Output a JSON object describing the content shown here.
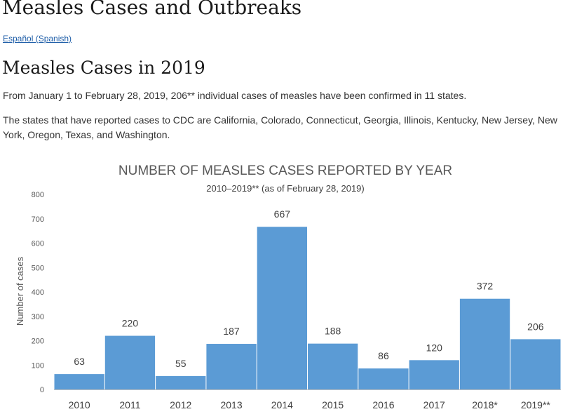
{
  "page": {
    "title": "Measles Cases and Outbreaks",
    "language_link": "Español (Spanish)",
    "section_title": "Measles Cases in 2019",
    "paragraph1": "From January 1 to February 28, 2019, 206** individual cases of measles have been confirmed in 11 states.",
    "paragraph2": "The states that have reported cases to CDC are California, Colorado, Connecticut, Georgia, Illinois, Kentucky, New Jersey, New York, Oregon, Texas, and Washington."
  },
  "colors": {
    "bar": "#5b9bd5",
    "link": "#1f5ea8",
    "axis": "#bfbfbf"
  },
  "chart_data": {
    "type": "bar",
    "title": "NUMBER OF MEASLES CASES REPORTED BY YEAR",
    "subtitle": "2010–2019** (as of February 28, 2019)",
    "xlabel": "",
    "ylabel": "Number of cases",
    "categories": [
      "2010",
      "2011",
      "2012",
      "2013",
      "2014",
      "2015",
      "2016",
      "2017",
      "2018*",
      "2019**"
    ],
    "values": [
      63,
      220,
      55,
      187,
      667,
      188,
      86,
      120,
      372,
      206
    ],
    "ylim": [
      0,
      800
    ],
    "yticks": [
      0,
      100,
      200,
      300,
      400,
      500,
      600,
      700,
      800
    ],
    "grid": false,
    "legend": "none",
    "data_labels": true
  }
}
